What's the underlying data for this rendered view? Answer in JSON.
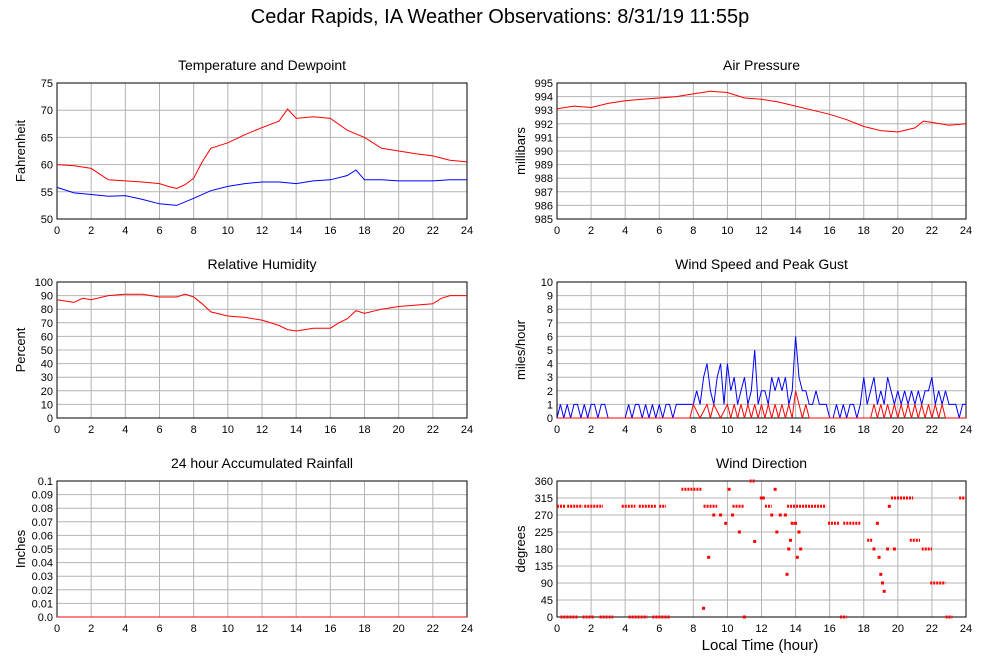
{
  "title": "Cedar Rapids, IA Weather Observations: 8/31/19 11:55p",
  "xlabel": "Local Time (hour)",
  "colors": {
    "red": "#ff0000",
    "blue": "#0000ff",
    "grid": "#b4b4b4"
  },
  "chart_data": [
    {
      "id": "temp",
      "type": "line",
      "title": "Temperature and Dewpoint",
      "ylabel": "Fahrenheit",
      "xlim": [
        0,
        24
      ],
      "ylim": [
        50,
        75
      ],
      "x_ticks": [
        0,
        2,
        4,
        6,
        8,
        10,
        12,
        14,
        16,
        18,
        20,
        22,
        24
      ],
      "y_ticks": [
        50,
        55,
        60,
        65,
        70,
        75
      ],
      "grid": true,
      "series": [
        {
          "color": "#ff0000",
          "x": [
            0,
            1,
            2,
            3,
            4,
            5,
            6,
            6.5,
            7,
            7.5,
            8,
            8.5,
            9,
            10,
            11,
            12,
            13,
            13.5,
            14,
            15,
            16,
            17,
            18,
            19,
            20,
            21,
            22,
            23,
            24
          ],
          "y": [
            60,
            59.8,
            59.3,
            57.2,
            57,
            56.8,
            56.5,
            56,
            55.6,
            56.3,
            57.5,
            60.5,
            63,
            64,
            65.5,
            66.8,
            68,
            70.2,
            68.5,
            68.8,
            68.5,
            66.3,
            65,
            63,
            62.5,
            62,
            61.6,
            60.8,
            60.5
          ]
        },
        {
          "color": "#0000ff",
          "x": [
            0,
            1,
            2,
            3,
            4,
            5,
            6,
            7,
            8,
            9,
            10,
            11,
            12,
            13,
            14,
            15,
            16,
            17,
            17.5,
            18,
            19,
            20,
            21,
            22,
            23,
            24
          ],
          "y": [
            55.8,
            54.8,
            54.5,
            54.2,
            54.3,
            53.6,
            52.8,
            52.5,
            53.8,
            55.2,
            56,
            56.5,
            56.8,
            56.8,
            56.5,
            57,
            57.2,
            58,
            59,
            57.2,
            57.2,
            57,
            57,
            57,
            57.2,
            57.2
          ]
        }
      ]
    },
    {
      "id": "pressure",
      "type": "line",
      "title": "Air Pressure",
      "ylabel": "millibars",
      "xlim": [
        0,
        24
      ],
      "ylim": [
        985,
        995
      ],
      "x_ticks": [
        0,
        2,
        4,
        6,
        8,
        10,
        12,
        14,
        16,
        18,
        20,
        22,
        24
      ],
      "y_ticks": [
        985,
        986,
        987,
        988,
        989,
        990,
        991,
        992,
        993,
        994,
        995
      ],
      "grid": true,
      "series": [
        {
          "color": "#ff0000",
          "x": [
            0,
            1,
            2,
            3,
            4,
            5,
            6,
            7,
            8,
            9,
            10,
            11,
            12,
            13,
            14,
            15,
            16,
            17,
            18,
            19,
            20,
            21,
            21.5,
            22,
            23,
            24
          ],
          "y": [
            993.1,
            993.3,
            993.2,
            993.5,
            993.7,
            993.8,
            993.9,
            994,
            994.2,
            994.4,
            994.3,
            993.9,
            993.8,
            993.6,
            993.3,
            993,
            992.7,
            992.3,
            991.8,
            991.5,
            991.4,
            991.7,
            992.2,
            992.1,
            991.9,
            992
          ]
        }
      ]
    },
    {
      "id": "humidity",
      "type": "line",
      "title": "Relative Humidity",
      "ylabel": "Percent",
      "xlim": [
        0,
        24
      ],
      "ylim": [
        0,
        100
      ],
      "x_ticks": [
        0,
        2,
        4,
        6,
        8,
        10,
        12,
        14,
        16,
        18,
        20,
        22,
        24
      ],
      "y_ticks": [
        0,
        10,
        20,
        30,
        40,
        50,
        60,
        70,
        80,
        90,
        100
      ],
      "grid": true,
      "series": [
        {
          "color": "#ff0000",
          "x": [
            0,
            1,
            1.5,
            2,
            3,
            4,
            5,
            6,
            7,
            7.5,
            8,
            8.5,
            9,
            10,
            11,
            12,
            13,
            13.5,
            14,
            15,
            16,
            16.5,
            17,
            17.5,
            18,
            19,
            20,
            21,
            22,
            22.5,
            23,
            24
          ],
          "y": [
            87,
            85,
            88,
            87,
            90,
            91,
            91,
            89,
            89,
            91,
            89,
            84,
            78,
            75,
            74,
            72,
            68,
            65,
            64,
            66,
            66,
            70,
            73,
            79,
            77,
            80,
            82,
            83,
            84,
            88,
            90,
            90
          ]
        }
      ]
    },
    {
      "id": "wind",
      "type": "line",
      "title": "Wind Speed and Peak Gust",
      "ylabel": "miles/hour",
      "xlim": [
        0,
        24
      ],
      "ylim": [
        0,
        10
      ],
      "x_ticks": [
        0,
        2,
        4,
        6,
        8,
        10,
        12,
        14,
        16,
        18,
        20,
        22,
        24
      ],
      "y_ticks": [
        0,
        1,
        2,
        3,
        4,
        5,
        6,
        7,
        8,
        9,
        10
      ],
      "grid": true,
      "series": [
        {
          "color": "#0000ff",
          "x": [
            0,
            0.2,
            0.4,
            0.6,
            0.8,
            1,
            1.2,
            1.4,
            1.6,
            1.8,
            2,
            2.2,
            2.4,
            2.6,
            2.8,
            3,
            3.2,
            3.4,
            3.6,
            3.8,
            4,
            4.2,
            4.4,
            4.6,
            4.8,
            5,
            5.2,
            5.4,
            5.6,
            5.8,
            6,
            6.2,
            6.4,
            6.6,
            6.8,
            7,
            7.2,
            7.4,
            7.6,
            7.8,
            8,
            8.2,
            8.4,
            8.6,
            8.8,
            9,
            9.2,
            9.4,
            9.6,
            9.8,
            10,
            10.2,
            10.4,
            10.6,
            10.8,
            11,
            11.2,
            11.4,
            11.6,
            11.8,
            12,
            12.2,
            12.4,
            12.6,
            12.8,
            13,
            13.2,
            13.4,
            13.6,
            13.8,
            14,
            14.2,
            14.4,
            14.6,
            14.8,
            15,
            15.2,
            15.4,
            15.6,
            15.8,
            16,
            16.2,
            16.4,
            16.6,
            16.8,
            17,
            17.2,
            17.4,
            17.6,
            17.8,
            18,
            18.2,
            18.4,
            18.6,
            18.8,
            19,
            19.2,
            19.4,
            19.6,
            19.8,
            20,
            20.2,
            20.4,
            20.6,
            20.8,
            21,
            21.2,
            21.4,
            21.6,
            21.8,
            22,
            22.2,
            22.4,
            22.6,
            22.8,
            23,
            23.2,
            23.4,
            23.6,
            23.8,
            24
          ],
          "y": [
            0,
            1,
            0,
            1,
            0,
            1,
            1,
            0,
            1,
            0,
            1,
            1,
            0,
            1,
            1,
            0,
            0,
            0,
            0,
            0,
            0,
            1,
            0,
            1,
            1,
            0,
            1,
            0,
            1,
            0,
            1,
            0,
            1,
            1,
            0,
            1,
            1,
            1,
            1,
            1,
            1,
            2,
            1,
            3,
            4,
            2,
            1,
            3,
            4,
            1,
            4,
            2,
            3,
            1,
            2,
            3,
            1,
            2,
            5,
            1,
            2,
            2,
            1,
            3,
            2,
            3,
            2,
            3,
            1,
            2,
            6,
            3,
            2,
            2,
            1,
            1,
            2,
            1,
            1,
            1,
            0,
            0,
            1,
            0,
            1,
            0,
            1,
            1,
            0,
            1,
            3,
            1,
            2,
            3,
            1,
            2,
            1,
            3,
            2,
            1,
            2,
            1,
            2,
            1,
            2,
            1,
            2,
            1,
            2,
            2,
            3,
            1,
            2,
            1,
            2,
            1,
            1,
            1,
            0,
            1,
            1
          ],
          "step_note": ""
        },
        {
          "color": "#ff0000",
          "x": [
            0,
            7.8,
            8,
            8.4,
            8.8,
            9,
            9.2,
            9.6,
            10,
            10.2,
            10.4,
            10.6,
            10.8,
            11,
            11.2,
            11.4,
            11.6,
            11.8,
            12,
            12.2,
            12.4,
            12.6,
            12.8,
            13,
            13.2,
            13.4,
            13.6,
            13.8,
            14,
            14.2,
            14.4,
            14.6,
            14.8,
            18.4,
            18.6,
            18.8,
            19,
            19.2,
            19.4,
            19.6,
            19.8,
            20,
            20.2,
            20.4,
            20.6,
            20.8,
            21,
            21.2,
            21.4,
            21.6,
            21.8,
            22,
            22.2,
            22.4,
            22.6,
            22.8,
            23,
            24
          ],
          "y": [
            0,
            0,
            1,
            0,
            1,
            0,
            1,
            0,
            1,
            0,
            1,
            0,
            1,
            0,
            1,
            0,
            1,
            0,
            1,
            0,
            1,
            0,
            1,
            0,
            1,
            0,
            1,
            0,
            2,
            1,
            0,
            1,
            0,
            0,
            1,
            0,
            1,
            0,
            1,
            0,
            1,
            0,
            1,
            0,
            1,
            0,
            1,
            0,
            1,
            0,
            1,
            0,
            1,
            0,
            1,
            0,
            0,
            0
          ]
        }
      ]
    },
    {
      "id": "rain",
      "type": "line",
      "title": "24 hour Accumulated Rainfall",
      "ylabel": "Inches",
      "xlim": [
        0,
        24
      ],
      "ylim": [
        0,
        0.1
      ],
      "x_ticks": [
        0,
        2,
        4,
        6,
        8,
        10,
        12,
        14,
        16,
        18,
        20,
        22,
        24
      ],
      "y_ticks": [
        "0.0",
        "0.01",
        "0.02",
        "0.03",
        "0.04",
        "0.05",
        "0.06",
        "0.07",
        "0.08",
        "0.09",
        "0.1"
      ],
      "grid": true,
      "series": [
        {
          "color": "#ff0000",
          "x": [
            0,
            24
          ],
          "y": [
            0,
            0
          ]
        }
      ]
    },
    {
      "id": "direction",
      "type": "scatter",
      "title": "Wind Direction",
      "ylabel": "degrees",
      "xlim": [
        0,
        24
      ],
      "ylim": [
        0,
        360
      ],
      "x_ticks": [
        0,
        2,
        4,
        6,
        8,
        10,
        12,
        14,
        16,
        18,
        20,
        22,
        24
      ],
      "y_ticks": [
        0,
        45,
        90,
        135,
        180,
        225,
        270,
        315,
        360
      ],
      "grid": true,
      "segments": [
        [
          0,
          0.5,
          293
        ],
        [
          0.6,
          1.5,
          293
        ],
        [
          1.6,
          2.7,
          293
        ],
        [
          0.2,
          1.2,
          0
        ],
        [
          1.5,
          2.2,
          0
        ],
        [
          2.5,
          3.3,
          0
        ],
        [
          3.8,
          4.6,
          293
        ],
        [
          4.8,
          5.8,
          293
        ],
        [
          6,
          6.4,
          293
        ],
        [
          4.2,
          5.3,
          0
        ],
        [
          5.6,
          6.6,
          0
        ],
        [
          7.3,
          8.5,
          338
        ],
        [
          8.6,
          9.4,
          293
        ],
        [
          11.3,
          11.6,
          360
        ],
        [
          11.9,
          12.2,
          315
        ],
        [
          12.2,
          12.6,
          293
        ],
        [
          10.3,
          11,
          293
        ],
        [
          13.5,
          15.8,
          293
        ],
        [
          15.9,
          16.6,
          248
        ],
        [
          16.8,
          17.8,
          248
        ],
        [
          16.6,
          17.0,
          0
        ],
        [
          18.2,
          18.5,
          203
        ],
        [
          19.6,
          20.9,
          315
        ],
        [
          20.7,
          21.3,
          203
        ],
        [
          21.4,
          22,
          180
        ],
        [
          21.9,
          22.8,
          90
        ],
        [
          22.8,
          23.2,
          0
        ],
        [
          23.6,
          24,
          315
        ]
      ],
      "points": [
        [
          8.6,
          23
        ],
        [
          8.9,
          158
        ],
        [
          9.2,
          270
        ],
        [
          9.6,
          270
        ],
        [
          9.9,
          248
        ],
        [
          10.1,
          338
        ],
        [
          10.3,
          270
        ],
        [
          10.7,
          225
        ],
        [
          11.0,
          0
        ],
        [
          11.6,
          200
        ],
        [
          12.0,
          315
        ],
        [
          12.6,
          270
        ],
        [
          12.8,
          338
        ],
        [
          12.9,
          225
        ],
        [
          13.1,
          270
        ],
        [
          13.4,
          270
        ],
        [
          13.5,
          113
        ],
        [
          13.6,
          180
        ],
        [
          13.7,
          203
        ],
        [
          13.8,
          248
        ],
        [
          14.0,
          248
        ],
        [
          14.1,
          158
        ],
        [
          14.2,
          225
        ],
        [
          14.3,
          180
        ],
        [
          18.6,
          180
        ],
        [
          18.8,
          248
        ],
        [
          18.9,
          158
        ],
        [
          19.0,
          113
        ],
        [
          19.1,
          90
        ],
        [
          19.2,
          68
        ],
        [
          19.4,
          180
        ],
        [
          19.5,
          293
        ],
        [
          19.8,
          180
        ]
      ]
    }
  ]
}
